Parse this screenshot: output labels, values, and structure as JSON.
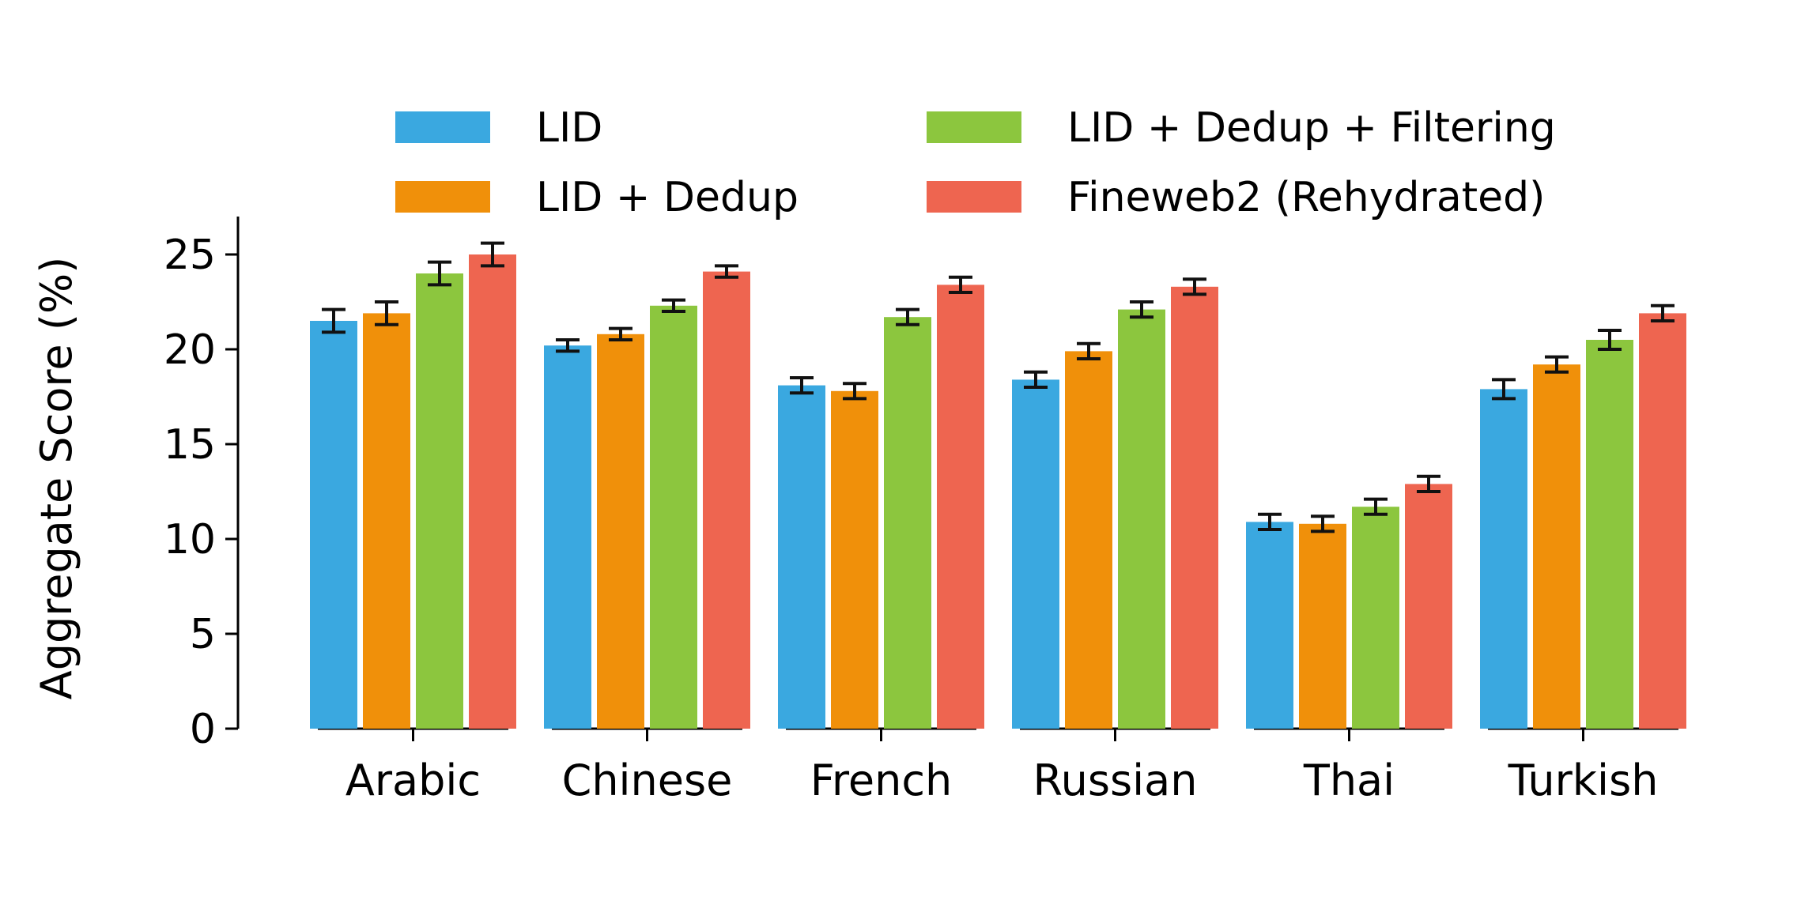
{
  "chart_data": {
    "type": "bar",
    "title": "",
    "xlabel": "",
    "ylabel": "Aggregate Score (%)",
    "ylim": [
      0,
      27
    ],
    "yticks": [
      0,
      5,
      10,
      15,
      20,
      25
    ],
    "grid": false,
    "legend_position": "top",
    "categories": [
      "Arabic",
      "Chinese",
      "French",
      "Russian",
      "Thai",
      "Turkish"
    ],
    "series": [
      {
        "name": "LID",
        "color": "#3aa8e0",
        "values": [
          21.5,
          20.2,
          18.1,
          18.4,
          10.9,
          17.9
        ],
        "errors": [
          0.6,
          0.3,
          0.4,
          0.4,
          0.4,
          0.5
        ]
      },
      {
        "name": "LID + Dedup",
        "color": "#f0900a",
        "values": [
          21.9,
          20.8,
          17.8,
          19.9,
          10.8,
          19.2
        ],
        "errors": [
          0.6,
          0.3,
          0.4,
          0.4,
          0.4,
          0.4
        ]
      },
      {
        "name": "LID + Dedup + Filtering",
        "color": "#8cc63e",
        "values": [
          24.0,
          22.3,
          21.7,
          22.1,
          11.7,
          20.5
        ],
        "errors": [
          0.6,
          0.3,
          0.4,
          0.4,
          0.4,
          0.5
        ]
      },
      {
        "name": "Fineweb2 (Rehydrated)",
        "color": "#ee6550",
        "values": [
          25.0,
          24.1,
          23.4,
          23.3,
          12.9,
          21.9
        ],
        "errors": [
          0.6,
          0.3,
          0.4,
          0.4,
          0.4,
          0.4
        ]
      }
    ]
  }
}
